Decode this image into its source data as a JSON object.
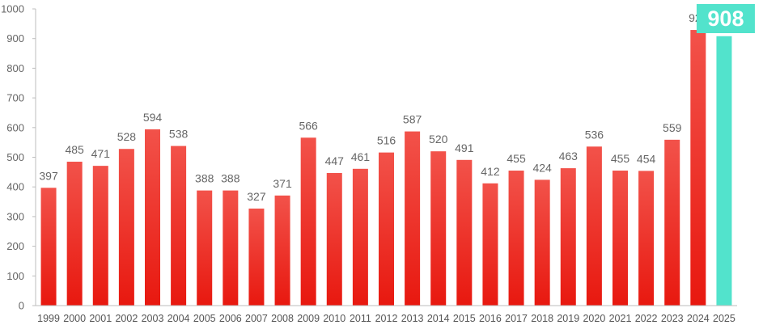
{
  "chart_data": {
    "type": "bar",
    "title": "",
    "xlabel": "",
    "ylabel": "",
    "ylim": [
      0,
      1000
    ],
    "yticks": [
      0,
      100,
      200,
      300,
      400,
      500,
      600,
      700,
      800,
      900,
      1000
    ],
    "grid": false,
    "categories": [
      "1999",
      "2000",
      "2001",
      "2002",
      "2003",
      "2004",
      "2005",
      "2006",
      "2007",
      "2008",
      "2009",
      "2010",
      "2011",
      "2012",
      "2013",
      "2014",
      "2015",
      "2016",
      "2017",
      "2018",
      "2019",
      "2020",
      "2021",
      "2022",
      "2023",
      "2024",
      "2025"
    ],
    "values": [
      397,
      485,
      471,
      528,
      594,
      538,
      388,
      388,
      327,
      371,
      566,
      447,
      461,
      516,
      587,
      520,
      491,
      412,
      455,
      424,
      463,
      536,
      455,
      454,
      559,
      929,
      908
    ],
    "highlight": {
      "category": "2025",
      "value": 908,
      "color": "#52e3cc"
    },
    "colors": {
      "bar_top": "#f2524a",
      "bar_bottom": "#e8180f",
      "axis": "#bdbdbd"
    }
  }
}
